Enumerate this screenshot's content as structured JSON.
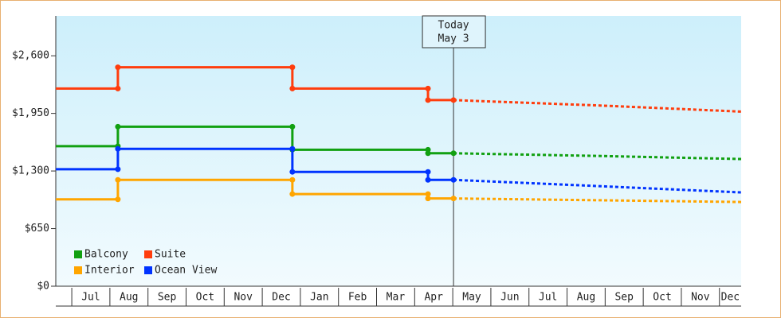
{
  "chart_data": {
    "type": "step-line",
    "categories": [
      "Jul",
      "Aug",
      "Sep",
      "Oct",
      "Nov",
      "Dec",
      "Jan",
      "Feb",
      "Mar",
      "Apr",
      "May",
      "Jun",
      "Jul",
      "Aug",
      "Sep",
      "Oct",
      "Nov",
      "Dec"
    ],
    "xlim": [
      -0.42,
      17.57
    ],
    "ylim": [
      0,
      3050
    ],
    "yticks": [
      {
        "value": 0,
        "label": "$0"
      },
      {
        "value": 650,
        "label": "$650"
      },
      {
        "value": 1300,
        "label": "$1,300"
      },
      {
        "value": 1950,
        "label": "$1,950"
      },
      {
        "value": 2600,
        "label": "$2,600"
      }
    ],
    "annotation": {
      "x": 10.02,
      "lines": [
        "Today",
        "May 3"
      ]
    },
    "legend": "bottom-left",
    "series": [
      {
        "name": "Balcony",
        "color": "#11a011",
        "x": [
          -0.42,
          1.21,
          1.21,
          5.79,
          5.79,
          9.35,
          9.35,
          10.02
        ],
        "values": [
          1580,
          1580,
          1800,
          1800,
          1540,
          1540,
          1500,
          1500
        ],
        "forecast": {
          "x": [
            10.02,
            13.8,
            17.57
          ],
          "values": [
            1500,
            1470,
            1435
          ]
        }
      },
      {
        "name": "Suite",
        "color": "#ff3d0d",
        "x": [
          -0.42,
          1.21,
          1.21,
          5.79,
          5.79,
          9.35,
          9.35,
          10.02
        ],
        "values": [
          2230,
          2230,
          2470,
          2470,
          2230,
          2230,
          2100,
          2100
        ],
        "forecast": {
          "x": [
            10.02,
            13.8,
            17.57
          ],
          "values": [
            2100,
            2040,
            1970
          ]
        }
      },
      {
        "name": "Interior",
        "color": "#ffa500",
        "x": [
          -0.42,
          1.21,
          1.21,
          5.79,
          5.79,
          9.35,
          9.35,
          10.02
        ],
        "values": [
          980,
          980,
          1200,
          1200,
          1040,
          1040,
          990,
          990
        ],
        "forecast": {
          "x": [
            10.02,
            13.8,
            17.57
          ],
          "values": [
            990,
            970,
            950
          ]
        }
      },
      {
        "name": "Ocean View",
        "color": "#0033ff",
        "x": [
          -0.42,
          1.21,
          1.21,
          5.79,
          5.79,
          9.35,
          9.35,
          10.02
        ],
        "values": [
          1320,
          1320,
          1550,
          1550,
          1290,
          1290,
          1200,
          1200
        ],
        "forecast": {
          "x": [
            10.02,
            13.8,
            17.57
          ],
          "values": [
            1200,
            1130,
            1058
          ]
        }
      }
    ]
  }
}
